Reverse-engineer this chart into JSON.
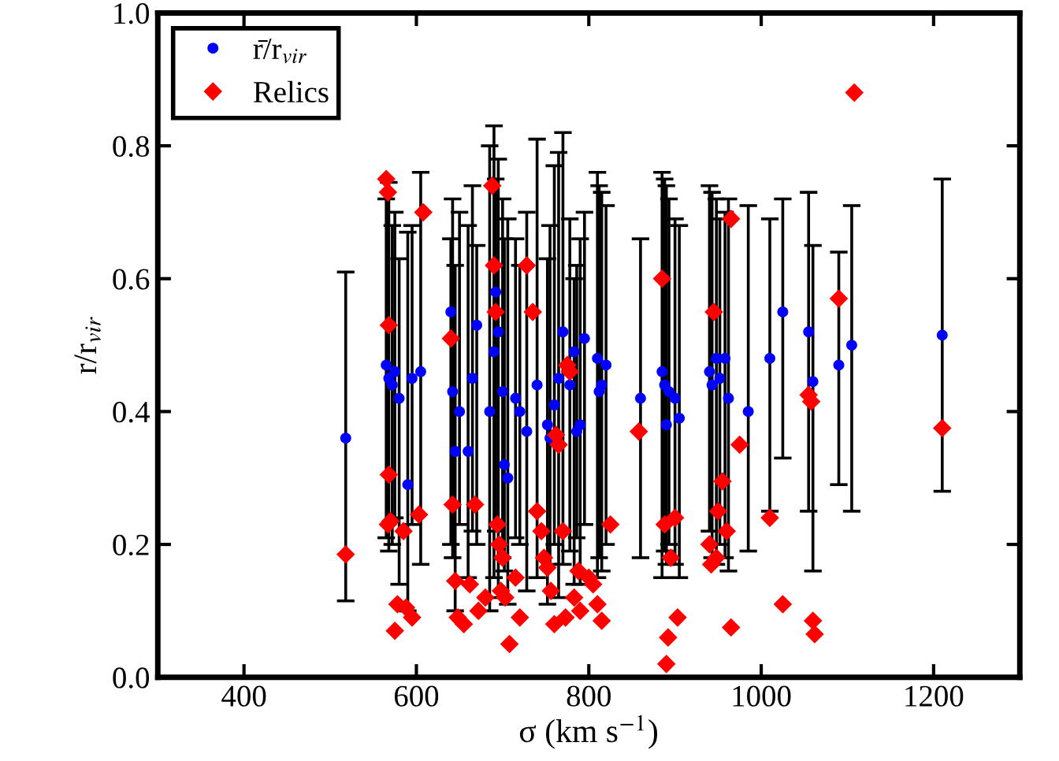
{
  "chart_data": {
    "type": "scatter",
    "xlabel": "σ (km s$^{−1}$)",
    "ylabel": "r/r$_{vir}$",
    "xlim": [
      300,
      1300
    ],
    "ylim": [
      0,
      1
    ],
    "xticks": [
      400,
      600,
      800,
      1000,
      1200
    ],
    "yticks": [
      {
        "value": 0,
        "label": "0.0"
      },
      0.2,
      0.4,
      0.6,
      0.8,
      {
        "value": 1,
        "label": "1.0"
      }
    ],
    "grid": false,
    "legend": "top left",
    "series": [
      {
        "name": "r̄/r$_{vir}$",
        "color": "#0000ff",
        "marker": "circle",
        "x": [
          518,
          565,
          568,
          572,
          575,
          580,
          590,
          595,
          605,
          640,
          642,
          645,
          650,
          660,
          665,
          670,
          685,
          690,
          692,
          695,
          700,
          702,
          706,
          715,
          720,
          728,
          740,
          752,
          755,
          760,
          765,
          770,
          778,
          783,
          786,
          790,
          795,
          810,
          812,
          815,
          820,
          860,
          885,
          888,
          890,
          893,
          900,
          905,
          940,
          943,
          948,
          952,
          958,
          962,
          985,
          1010,
          1025,
          1055,
          1060,
          1090,
          1105,
          1210
        ],
        "values": [
          0.36,
          0.47,
          0.45,
          0.44,
          0.46,
          0.42,
          0.29,
          0.45,
          0.46,
          0.55,
          0.43,
          0.34,
          0.4,
          0.34,
          0.45,
          0.53,
          0.4,
          0.49,
          0.58,
          0.52,
          0.43,
          0.32,
          0.3,
          0.42,
          0.4,
          0.37,
          0.44,
          0.38,
          0.36,
          0.41,
          0.45,
          0.52,
          0.44,
          0.49,
          0.37,
          0.38,
          0.51,
          0.48,
          0.43,
          0.44,
          0.47,
          0.42,
          0.46,
          0.44,
          0.38,
          0.43,
          0.42,
          0.39,
          0.46,
          0.44,
          0.48,
          0.45,
          0.48,
          0.42,
          0.4,
          0.48,
          0.55,
          0.52,
          0.445,
          0.47,
          0.5,
          0.515
        ],
        "errors": [
          [
            0.115,
            0.61
          ],
          [
            0.21,
            0.72
          ],
          [
            0.19,
            0.745
          ],
          [
            0.2,
            0.68
          ],
          [
            0.24,
            0.7
          ],
          [
            0.14,
            0.63
          ],
          [
            0.1,
            0.67
          ],
          [
            0.23,
            0.68
          ],
          [
            0.17,
            0.76
          ],
          [
            0.2,
            0.66
          ],
          [
            0.18,
            0.72
          ],
          [
            0.1,
            0.62
          ],
          [
            0.23,
            0.7
          ],
          [
            0.15,
            0.68
          ],
          [
            0.22,
            0.74
          ],
          [
            0.2,
            0.65
          ],
          [
            0.1,
            0.8
          ],
          [
            0.15,
            0.83
          ],
          [
            0.22,
            0.75
          ],
          [
            0.12,
            0.78
          ],
          [
            0.18,
            0.72
          ],
          [
            0.16,
            0.66
          ],
          [
            0.11,
            0.69
          ],
          [
            0.21,
            0.66
          ],
          [
            0.2,
            0.62
          ],
          [
            0.13,
            0.7
          ],
          [
            0.15,
            0.81
          ],
          [
            0.11,
            0.63
          ],
          [
            0.17,
            0.68
          ],
          [
            0.2,
            0.77
          ],
          [
            0.12,
            0.79
          ],
          [
            0.17,
            0.82
          ],
          [
            0.19,
            0.69
          ],
          [
            0.14,
            0.6
          ],
          [
            0.21,
            0.62
          ],
          [
            0.14,
            0.66
          ],
          [
            0.23,
            0.7
          ],
          [
            0.15,
            0.76
          ],
          [
            0.18,
            0.74
          ],
          [
            0.16,
            0.73
          ],
          [
            0.2,
            0.71
          ],
          [
            0.18,
            0.66
          ],
          [
            0.15,
            0.76
          ],
          [
            0.19,
            0.75
          ],
          [
            0.17,
            0.74
          ],
          [
            0.2,
            0.72
          ],
          [
            0.17,
            0.69
          ],
          [
            0.15,
            0.68
          ],
          [
            0.22,
            0.74
          ],
          [
            0.18,
            0.73
          ],
          [
            0.17,
            0.72
          ],
          [
            0.2,
            0.69
          ],
          [
            0.18,
            0.7
          ],
          [
            0.16,
            0.72
          ],
          [
            0.19,
            0.71
          ],
          [
            0.25,
            0.69
          ],
          [
            0.33,
            0.72
          ],
          [
            0.25,
            0.73
          ],
          [
            0.16,
            0.65
          ],
          [
            0.29,
            0.64
          ],
          [
            0.25,
            0.71
          ],
          [
            0.28,
            0.75
          ]
        ]
      },
      {
        "name": "Relics",
        "color": "#ff0000",
        "marker": "diamond",
        "x": [
          518,
          565,
          567,
          568,
          568,
          570,
          567,
          575,
          578,
          585,
          588,
          595,
          603,
          608,
          640,
          642,
          645,
          648,
          655,
          662,
          668,
          672,
          680,
          688,
          690,
          692,
          694,
          696,
          698,
          700,
          703,
          708,
          715,
          720,
          728,
          735,
          740,
          745,
          748,
          752,
          756,
          760,
          762,
          765,
          770,
          773,
          775,
          778,
          783,
          788,
          790,
          800,
          805,
          810,
          815,
          825,
          858,
          885,
          888,
          890,
          892,
          895,
          900,
          903,
          940,
          942,
          945,
          948,
          950,
          955,
          960,
          965,
          965,
          975,
          1010,
          1025,
          1055,
          1058,
          1060,
          1062,
          1090,
          1108,
          1210
        ],
        "values": [
          0.185,
          0.75,
          0.73,
          0.53,
          0.305,
          0.235,
          0.23,
          0.07,
          0.11,
          0.22,
          0.105,
          0.09,
          0.245,
          0.7,
          0.51,
          0.26,
          0.145,
          0.09,
          0.08,
          0.14,
          0.26,
          0.1,
          0.12,
          0.74,
          0.62,
          0.55,
          0.23,
          0.2,
          0.13,
          0.18,
          0.12,
          0.05,
          0.15,
          0.09,
          0.62,
          0.55,
          0.25,
          0.22,
          0.18,
          0.165,
          0.13,
          0.08,
          0.365,
          0.35,
          0.22,
          0.09,
          0.47,
          0.46,
          0.12,
          0.16,
          0.1,
          0.15,
          0.14,
          0.11,
          0.085,
          0.23,
          0.37,
          0.6,
          0.23,
          0.02,
          0.06,
          0.18,
          0.24,
          0.09,
          0.2,
          0.17,
          0.55,
          0.18,
          0.25,
          0.295,
          0.22,
          0.075,
          0.69,
          0.35,
          0.24,
          0.11,
          0.425,
          0.415,
          0.085,
          0.065,
          0.57,
          0.88,
          0.375
        ]
      }
    ]
  }
}
